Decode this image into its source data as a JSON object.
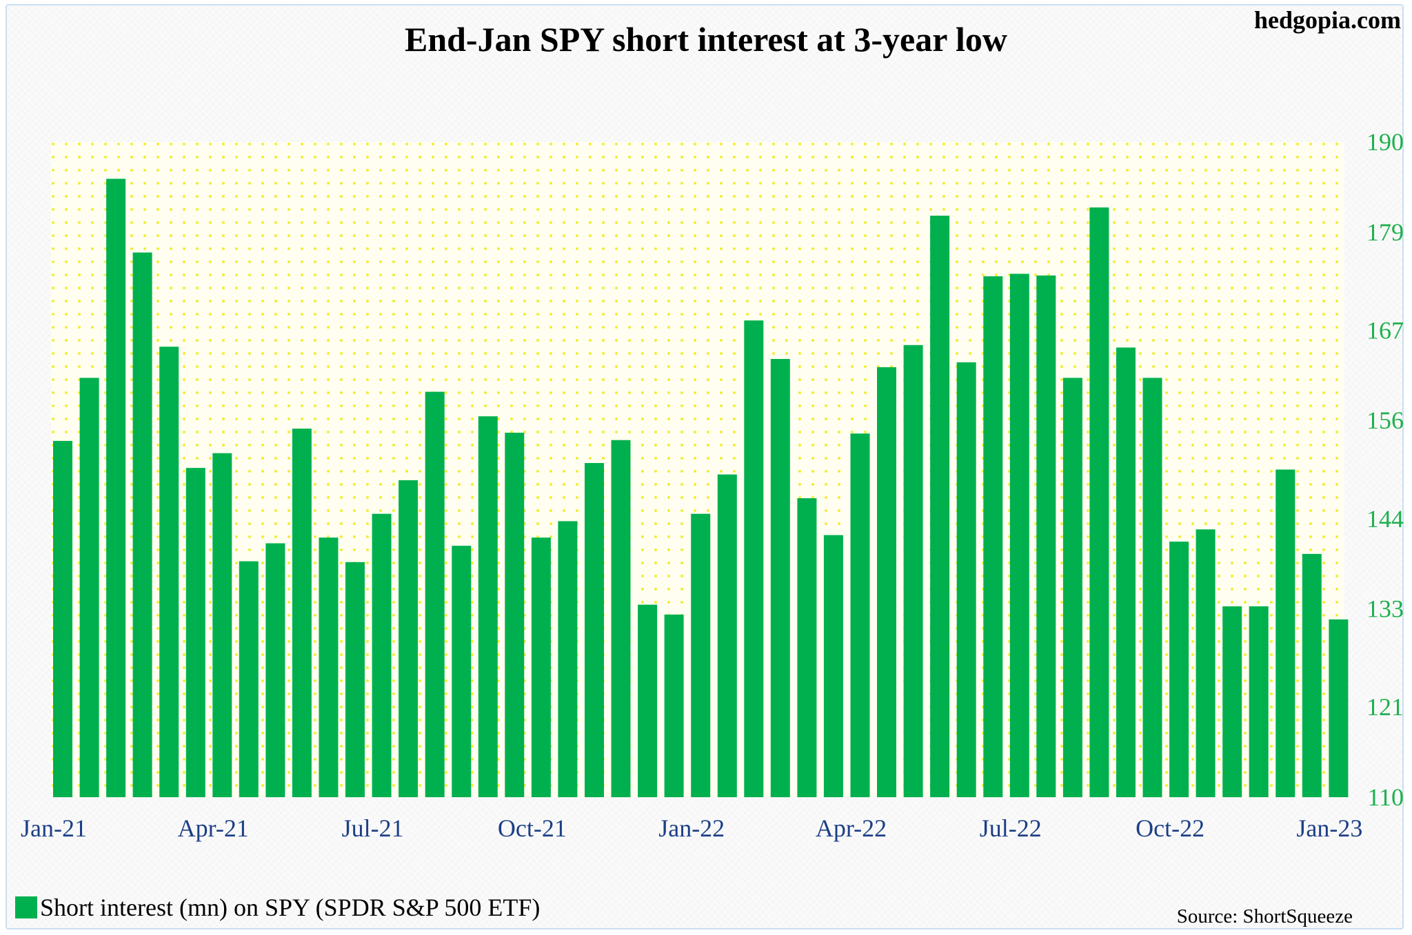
{
  "brand": "hedgopia.com",
  "source": "Source: ShortSqueeze",
  "colors": {
    "bar": "#00b04f",
    "plot_bg": "#fffef0",
    "dots": "#f2ee32",
    "y_ticks": "#1fb04d",
    "x_ticks": "#1c3f86"
  },
  "chart_data": {
    "type": "bar",
    "title": "End-Jan SPY short interest at 3-year low",
    "xlabel": "",
    "ylabel": "",
    "ylim": [
      110,
      190
    ],
    "y_ticks": [
      110,
      121,
      133,
      144,
      156,
      167,
      179,
      190
    ],
    "y_axis_position": "right",
    "x_tick_labels": [
      "Jan-21",
      "Apr-21",
      "Jul-21",
      "Oct-21",
      "Jan-22",
      "Apr-22",
      "Jul-22",
      "Oct-22",
      "Jan-23"
    ],
    "x_tick_bar_index": [
      0,
      6,
      12,
      18,
      24,
      30,
      36,
      42,
      48
    ],
    "legend": {
      "label": "Short interest (mn) on SPY (SPDR S&P 500 ETF)",
      "position": "bottom-left"
    },
    "grid": false,
    "series": [
      {
        "name": "Short interest (mn) on SPY (SPDR S&P 500 ETF)",
        "values": [
          153.5,
          161.2,
          185.5,
          176.5,
          165.0,
          150.2,
          152.0,
          138.8,
          141.0,
          155.0,
          141.7,
          138.7,
          144.6,
          148.7,
          159.5,
          140.7,
          156.5,
          154.5,
          141.7,
          143.7,
          150.8,
          153.6,
          133.5,
          132.3,
          144.6,
          149.4,
          168.2,
          163.5,
          146.5,
          142.0,
          154.4,
          162.5,
          165.2,
          181.0,
          163.1,
          173.6,
          173.9,
          173.7,
          161.2,
          182.0,
          164.9,
          161.2,
          141.2,
          142.7,
          133.3,
          133.3,
          150.0,
          139.7,
          131.7
        ]
      }
    ]
  }
}
